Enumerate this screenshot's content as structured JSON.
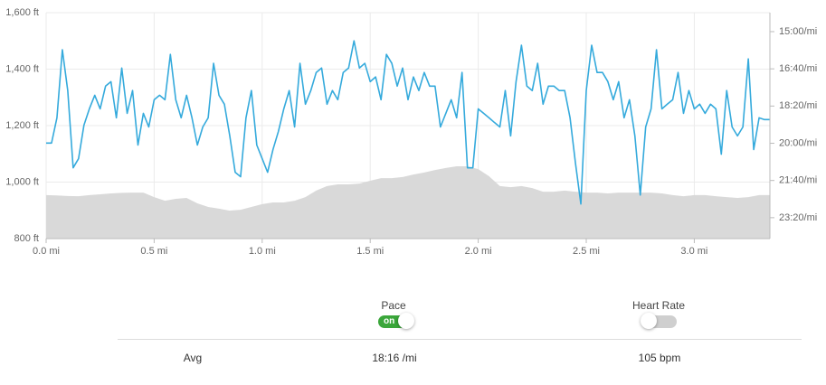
{
  "chart_data": {
    "type": "line",
    "xlim": [
      0,
      3.35
    ],
    "xticks": [
      {
        "value": 0,
        "label": "0.0 mi"
      },
      {
        "value": 0.5,
        "label": "0.5 mi"
      },
      {
        "value": 1,
        "label": "1.0 mi"
      },
      {
        "value": 1.5,
        "label": "1.5 mi"
      },
      {
        "value": 2,
        "label": "2.0 mi"
      },
      {
        "value": 2.5,
        "label": "2.5 mi"
      },
      {
        "value": 3,
        "label": "3.0 mi"
      }
    ],
    "ylim": [
      800,
      1600
    ],
    "yticks": [
      {
        "value": 800,
        "label": "800 ft"
      },
      {
        "value": 1000,
        "label": "1,000 ft"
      },
      {
        "value": 1200,
        "label": "1,200 ft"
      },
      {
        "value": 1400,
        "label": "1,400 ft"
      },
      {
        "value": 1600,
        "label": "1,600 ft"
      }
    ],
    "y2lim": [
      24.27,
      14.15
    ],
    "y2ticks": [
      {
        "value": 15,
        "label": "15:00/mi"
      },
      {
        "value": 16.6667,
        "label": "16:40/mi"
      },
      {
        "value": 18.3333,
        "label": "18:20/mi"
      },
      {
        "value": 20,
        "label": "20:00/mi"
      },
      {
        "value": 21.6667,
        "label": "21:40/mi"
      },
      {
        "value": 23.3333,
        "label": "23:20/mi"
      }
    ],
    "grid": true,
    "series": [
      {
        "type": "area",
        "color": "#d9d9d9",
        "x": [
          0,
          0.05,
          0.1,
          0.15,
          0.2,
          0.25,
          0.3,
          0.35,
          0.4,
          0.45,
          0.5,
          0.55,
          0.6,
          0.65,
          0.7,
          0.75,
          0.8,
          0.85,
          0.9,
          0.95,
          1,
          1.05,
          1.1,
          1.15,
          1.2,
          1.25,
          1.3,
          1.35,
          1.4,
          1.45,
          1.5,
          1.55,
          1.6,
          1.65,
          1.7,
          1.75,
          1.8,
          1.85,
          1.9,
          1.95,
          2,
          2.05,
          2.1,
          2.15,
          2.2,
          2.25,
          2.3,
          2.35,
          2.4,
          2.45,
          2.5,
          2.55,
          2.6,
          2.65,
          2.7,
          2.75,
          2.8,
          2.85,
          2.9,
          2.95,
          3,
          3.05,
          3.1,
          3.15,
          3.2,
          3.25,
          3.3,
          3.35
        ],
        "values": [
          954,
          953,
          951,
          950,
          954,
          957,
          960,
          962,
          963,
          963,
          947,
          934,
          941,
          944,
          925,
          912,
          906,
          899,
          902,
          912,
          922,
          928,
          928,
          934,
          947,
          970,
          986,
          992,
          992,
          995,
          1005,
          1014,
          1014,
          1018,
          1027,
          1034,
          1043,
          1050,
          1056,
          1056,
          1046,
          1021,
          986,
          982,
          986,
          979,
          966,
          966,
          970,
          966,
          963,
          963,
          960,
          963,
          963,
          963,
          963,
          960,
          954,
          950,
          954,
          954,
          950,
          947,
          944,
          947,
          954,
          954
        ]
      },
      {
        "type": "line",
        "color": "#35aadc",
        "axis": "y2",
        "x": [
          0,
          0.025,
          0.05,
          0.075,
          0.1,
          0.125,
          0.15,
          0.175,
          0.2,
          0.225,
          0.25,
          0.275,
          0.3,
          0.325,
          0.35,
          0.375,
          0.4,
          0.425,
          0.45,
          0.475,
          0.5,
          0.525,
          0.55,
          0.575,
          0.6,
          0.625,
          0.65,
          0.675,
          0.7,
          0.725,
          0.75,
          0.775,
          0.8,
          0.825,
          0.85,
          0.875,
          0.9,
          0.925,
          0.95,
          0.975,
          1,
          1.025,
          1.05,
          1.075,
          1.1,
          1.125,
          1.15,
          1.175,
          1.2,
          1.225,
          1.25,
          1.275,
          1.3,
          1.325,
          1.35,
          1.375,
          1.4,
          1.425,
          1.45,
          1.475,
          1.5,
          1.525,
          1.55,
          1.575,
          1.6,
          1.625,
          1.65,
          1.675,
          1.7,
          1.725,
          1.75,
          1.775,
          1.8,
          1.825,
          1.85,
          1.875,
          1.9,
          1.925,
          1.95,
          1.975,
          2,
          2.025,
          2.05,
          2.075,
          2.1,
          2.125,
          2.15,
          2.175,
          2.2,
          2.225,
          2.25,
          2.275,
          2.3,
          2.325,
          2.35,
          2.375,
          2.4,
          2.425,
          2.45,
          2.475,
          2.5,
          2.525,
          2.55,
          2.575,
          2.6,
          2.625,
          2.65,
          2.675,
          2.7,
          2.725,
          2.75,
          2.775,
          2.8,
          2.825,
          2.85,
          2.875,
          2.9,
          2.925,
          2.95,
          2.975,
          3,
          3.025,
          3.05,
          3.075,
          3.1,
          3.125,
          3.15,
          3.175,
          3.2,
          3.225,
          3.25,
          3.275,
          3.3,
          3.325,
          3.35
        ],
        "values": [
          19.99,
          19.99,
          18.86,
          15.81,
          17.64,
          21.1,
          20.69,
          19.19,
          18.46,
          17.85,
          18.46,
          17.44,
          17.24,
          18.86,
          16.63,
          18.66,
          17.64,
          20.08,
          18.66,
          19.27,
          18.05,
          17.85,
          18.05,
          16.02,
          18.05,
          18.86,
          17.85,
          18.86,
          20.08,
          19.27,
          18.86,
          16.42,
          17.85,
          18.25,
          19.67,
          21.3,
          21.5,
          18.86,
          17.64,
          20.08,
          20.69,
          21.3,
          20.28,
          19.47,
          18.46,
          17.64,
          19.27,
          16.42,
          18.25,
          17.64,
          16.83,
          16.63,
          18.25,
          17.64,
          18.05,
          16.83,
          16.63,
          15.41,
          16.63,
          16.42,
          17.24,
          17.03,
          18.05,
          16.02,
          16.42,
          17.44,
          16.63,
          18.05,
          17.03,
          17.64,
          16.83,
          17.44,
          17.44,
          19.27,
          18.66,
          18.05,
          18.86,
          16.83,
          21.1,
          21.1,
          18.46,
          18.66,
          18.86,
          19.07,
          19.27,
          17.64,
          19.67,
          17.24,
          15.61,
          17.44,
          17.64,
          16.42,
          18.25,
          17.44,
          17.44,
          17.64,
          17.64,
          18.86,
          20.89,
          22.72,
          17.64,
          15.61,
          16.83,
          16.83,
          17.24,
          18.05,
          17.24,
          18.86,
          18.05,
          19.67,
          22.32,
          19.27,
          18.46,
          15.81,
          18.46,
          18.25,
          18.05,
          16.83,
          18.66,
          17.64,
          18.46,
          18.25,
          18.66,
          18.25,
          18.46,
          20.49,
          17.64,
          19.27,
          19.67,
          19.27,
          16.22,
          20.28,
          18.86,
          18.94,
          18.94
        ]
      }
    ]
  },
  "controls": {
    "toggles": [
      {
        "label": "Pace",
        "state": "on",
        "enabled": true
      },
      {
        "label": "Heart Rate",
        "enabled": false
      }
    ]
  },
  "summary": {
    "label": "Avg",
    "values": [
      "18:16 /mi",
      "105 bpm"
    ]
  }
}
